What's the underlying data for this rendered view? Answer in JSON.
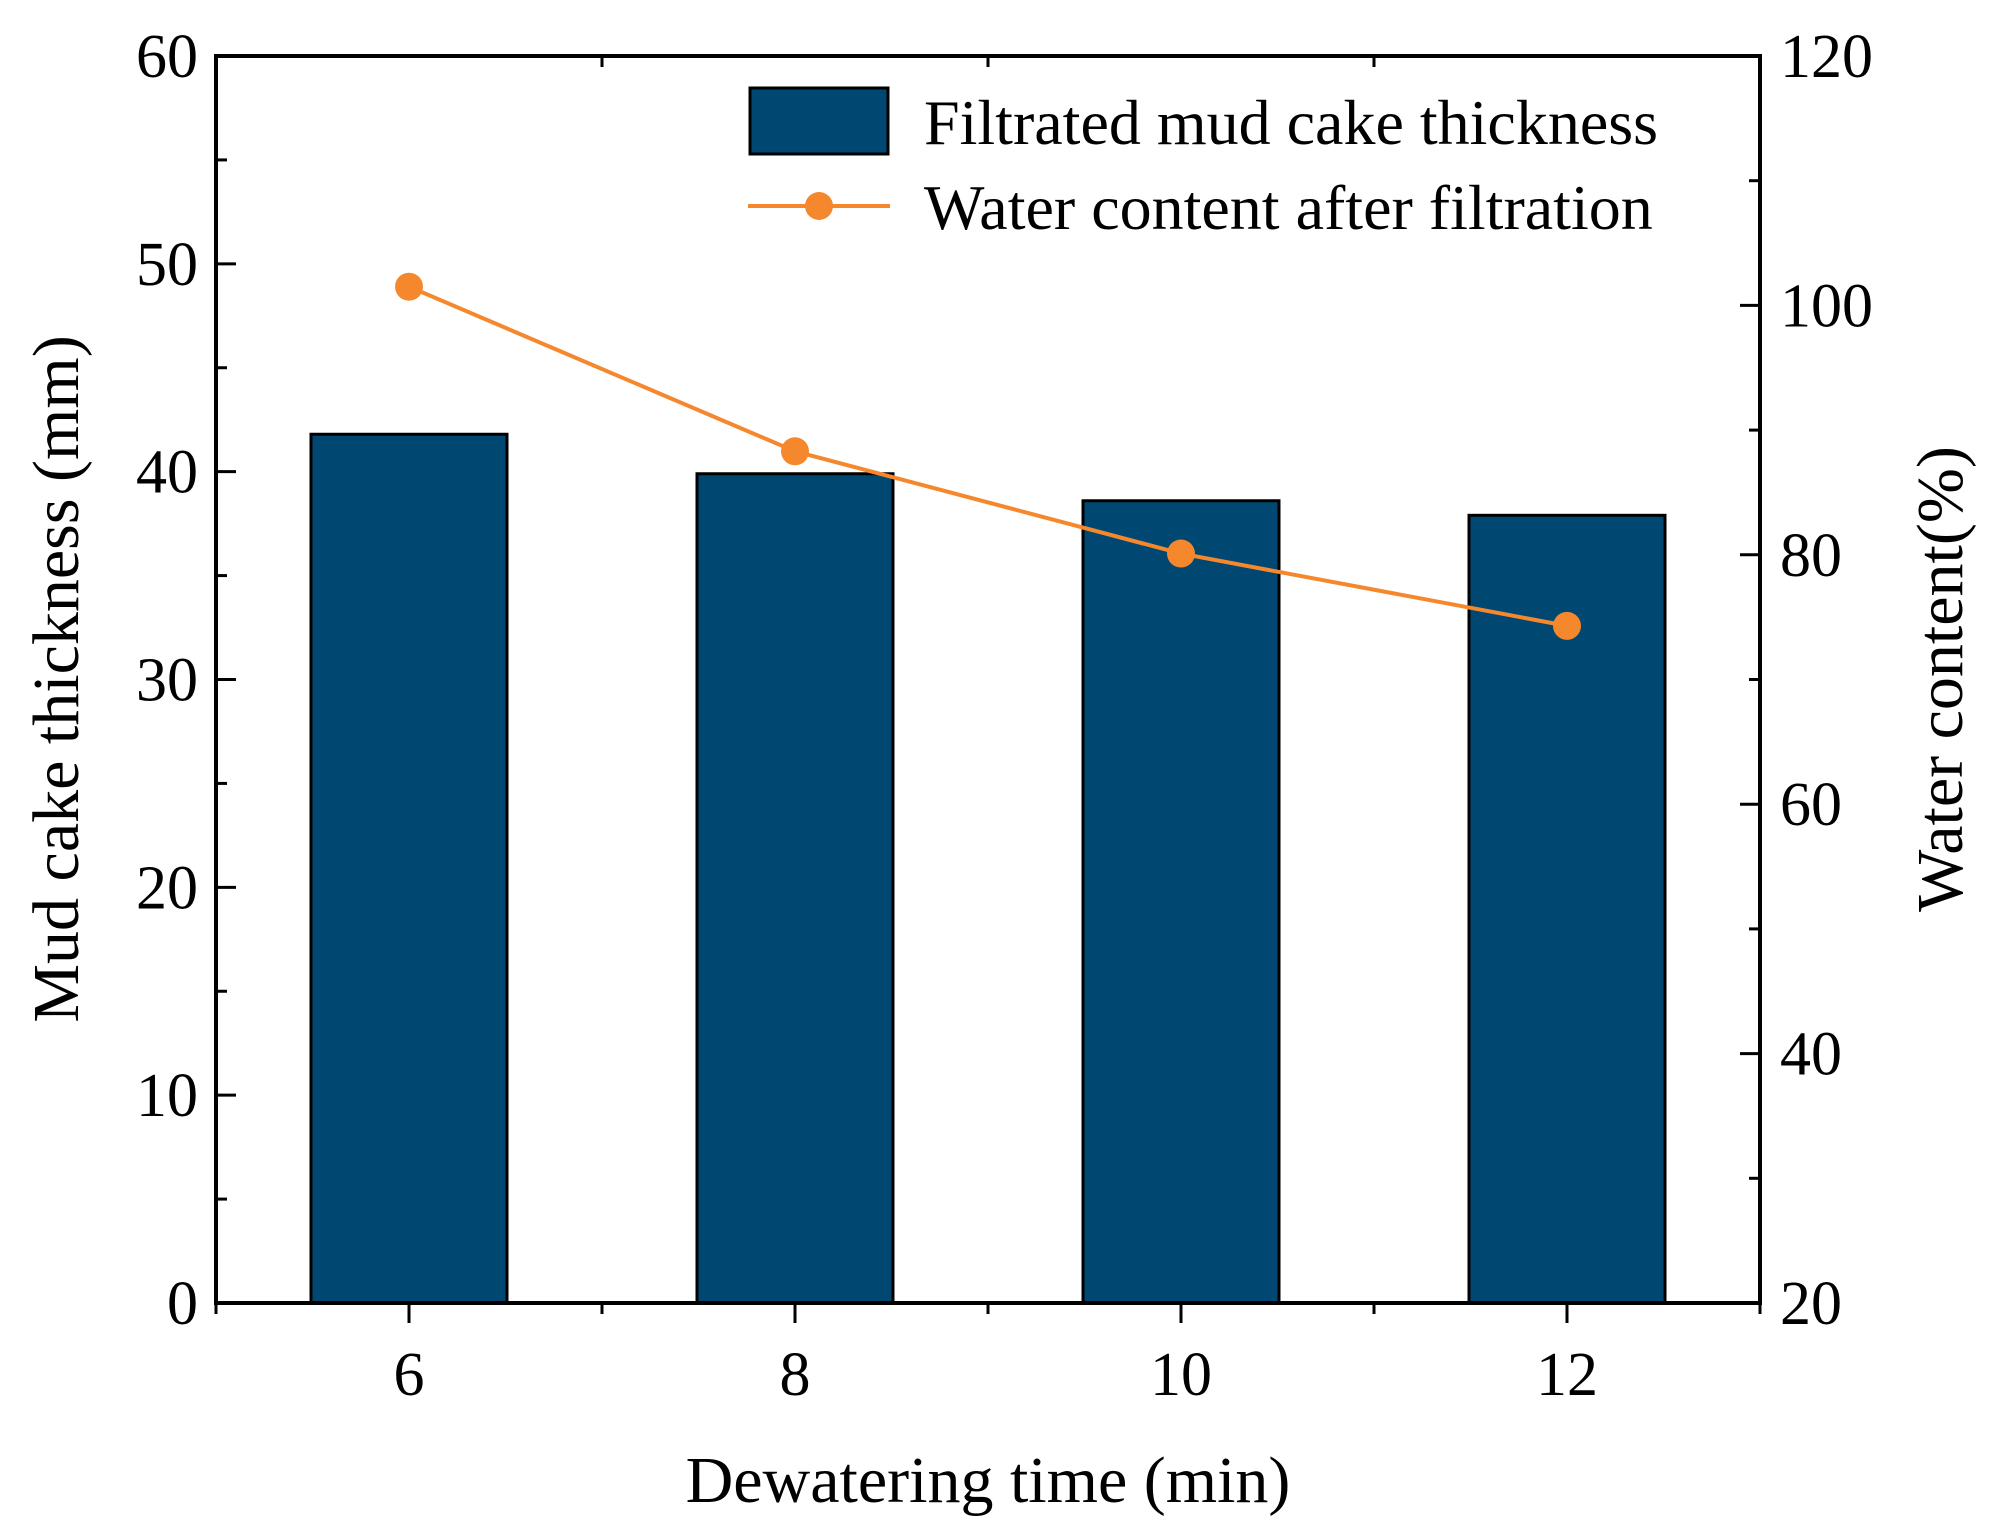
{
  "chart_data": {
    "type": "bar",
    "title": "",
    "xlabel": "Dewatering time (min)",
    "ylabel": "Mud cake thickness (mm)",
    "y2label": "Water content(%)",
    "categories": [
      "6",
      "8",
      "10",
      "12"
    ],
    "ylim": [
      0,
      60
    ],
    "y2lim": [
      20,
      120
    ],
    "yticks": [
      "0",
      "10",
      "20",
      "30",
      "40",
      "50",
      "60"
    ],
    "y2ticks": [
      "20",
      "40",
      "60",
      "80",
      "100",
      "120"
    ],
    "legend_position": "top-right",
    "series": [
      {
        "name": "Filtrated mud cake thickness",
        "type": "bar",
        "axis": "left",
        "color": "#004872",
        "values": [
          41.8,
          39.9,
          38.6,
          37.9
        ]
      },
      {
        "name": "Water content after filtration",
        "type": "line",
        "axis": "right",
        "color": "#f5882d",
        "values": [
          101.5,
          88.3,
          80.1,
          74.3
        ]
      }
    ]
  }
}
